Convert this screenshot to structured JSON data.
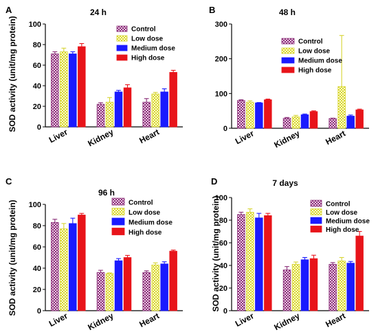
{
  "chart_data": [
    {
      "panel": "A",
      "type": "bar",
      "title": "24 h",
      "ylabel": "SOD activity (unit/mg protein)",
      "categories": [
        "Liver",
        "Kidney",
        "Heart"
      ],
      "ylim": [
        0,
        100
      ],
      "yticks": [
        0,
        20,
        40,
        60,
        80,
        100
      ],
      "legend": "top-right",
      "series": [
        {
          "name": "Control",
          "values": [
            71,
            22,
            24
          ],
          "errors": [
            2,
            1.5,
            3.5
          ]
        },
        {
          "name": "Low dose",
          "values": [
            73,
            24,
            32
          ],
          "errors": [
            3.5,
            4.5,
            1.5
          ]
        },
        {
          "name": "Medium dose",
          "values": [
            71,
            34,
            34
          ],
          "errors": [
            2,
            1.5,
            3
          ]
        },
        {
          "name": "High dose",
          "values": [
            78,
            38,
            53
          ],
          "errors": [
            3,
            3,
            2
          ]
        }
      ]
    },
    {
      "panel": "B",
      "type": "bar",
      "title": "48 h",
      "ylabel": "",
      "categories": [
        "Liver",
        "Kidney",
        "Heart"
      ],
      "ylim": [
        0,
        300
      ],
      "yticks": [
        0,
        100,
        200,
        300
      ],
      "legend": "top-right",
      "series": [
        {
          "name": "Control",
          "values": [
            80,
            29,
            28
          ],
          "errors": [
            2,
            2,
            1
          ]
        },
        {
          "name": "Low dose",
          "values": [
            75,
            33,
            120
          ],
          "errors": [
            4,
            4,
            147
          ]
        },
        {
          "name": "Medium dose",
          "values": [
            73,
            39,
            35
          ],
          "errors": [
            1,
            2,
            3
          ]
        },
        {
          "name": "High dose",
          "values": [
            82,
            48,
            53
          ],
          "errors": [
            2,
            2,
            2
          ]
        }
      ]
    },
    {
      "panel": "C",
      "type": "bar",
      "title": "96 h",
      "ylabel": "SOD activity (unit/mg protein)",
      "categories": [
        "Liver",
        "Kidney",
        "Heart"
      ],
      "ylim": [
        0,
        100
      ],
      "yticks": [
        0,
        20,
        40,
        60,
        80,
        100
      ],
      "legend": "top-right",
      "series": [
        {
          "name": "Control",
          "values": [
            83,
            36,
            36
          ],
          "errors": [
            3,
            2,
            1.5
          ]
        },
        {
          "name": "Low dose",
          "values": [
            77,
            35,
            43
          ],
          "errors": [
            5,
            0.5,
            2
          ]
        },
        {
          "name": "Medium dose",
          "values": [
            82,
            47,
            44
          ],
          "errors": [
            5,
            2,
            2
          ]
        },
        {
          "name": "High dose",
          "values": [
            90,
            50,
            56
          ],
          "errors": [
            1.5,
            2,
            1
          ]
        }
      ]
    },
    {
      "panel": "D",
      "type": "bar",
      "title": "7 days",
      "ylabel": "SOD activity (unit/mg protein)",
      "categories": [
        "Liver",
        "Kidney",
        "Heart"
      ],
      "ylim": [
        0,
        100
      ],
      "yticks": [
        0,
        20,
        40,
        60,
        80,
        100
      ],
      "legend": "top-right",
      "series": [
        {
          "name": "Control",
          "values": [
            85,
            36,
            41
          ],
          "errors": [
            2,
            3,
            1.5
          ]
        },
        {
          "name": "Low dose",
          "values": [
            87,
            41,
            44
          ],
          "errors": [
            3,
            2,
            3
          ]
        },
        {
          "name": "Medium dose",
          "values": [
            82,
            45,
            42
          ],
          "errors": [
            4,
            2,
            1.5
          ]
        },
        {
          "name": "High dose",
          "values": [
            84,
            46,
            66
          ],
          "errors": [
            2,
            3,
            4
          ]
        }
      ]
    }
  ],
  "colors": {
    "control": "#8a2f78",
    "low": "#d6d431",
    "medium": "#1a1aff",
    "high": "#e8141a"
  }
}
